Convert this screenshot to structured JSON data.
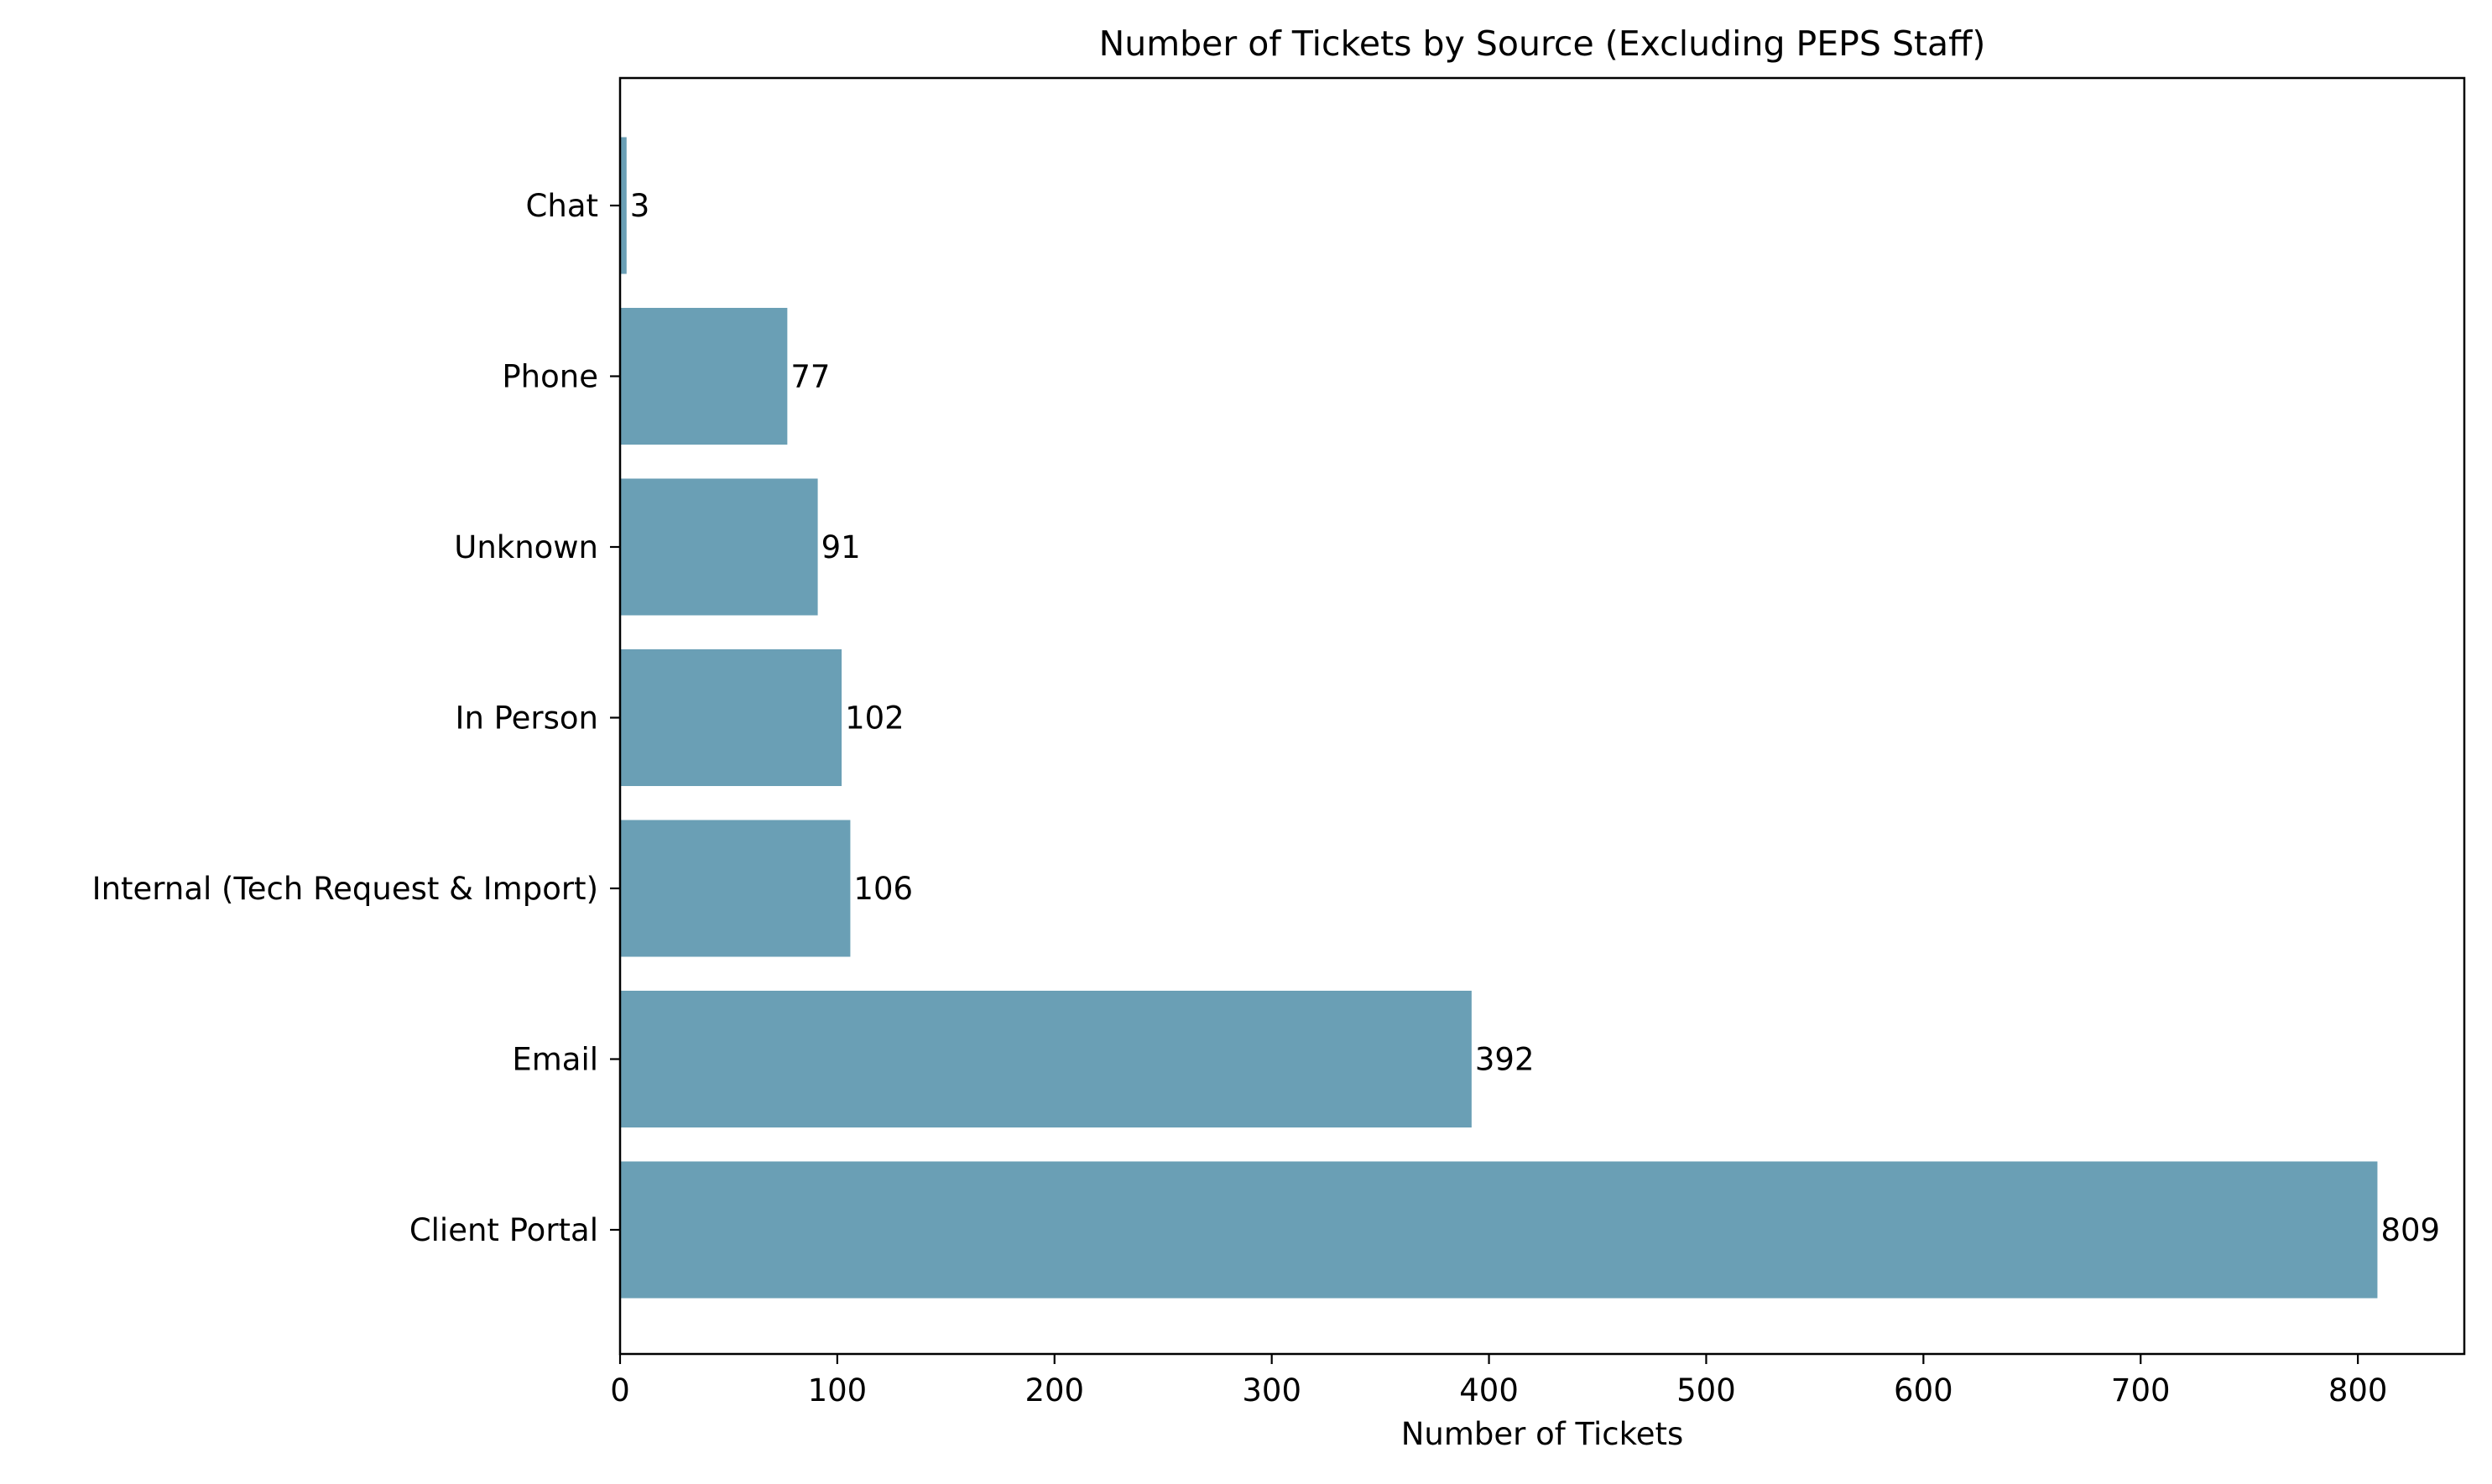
{
  "chart_data": {
    "type": "bar",
    "orientation": "horizontal",
    "title": "Number of Tickets by Source (Excluding PEPS Staff)",
    "xlabel": "Number of Tickets",
    "ylabel": "",
    "categories": [
      "Client Portal",
      "Email",
      "Internal (Tech Request & Import)",
      "In Person",
      "Unknown",
      "Phone",
      "Chat"
    ],
    "values": [
      809,
      392,
      106,
      102,
      91,
      77,
      3
    ],
    "xlim": [
      0,
      849
    ],
    "xticks": [
      0,
      100,
      200,
      300,
      400,
      500,
      600,
      700,
      800
    ],
    "bar_color": "#6a9fb5",
    "grid": false,
    "legend": "none"
  }
}
